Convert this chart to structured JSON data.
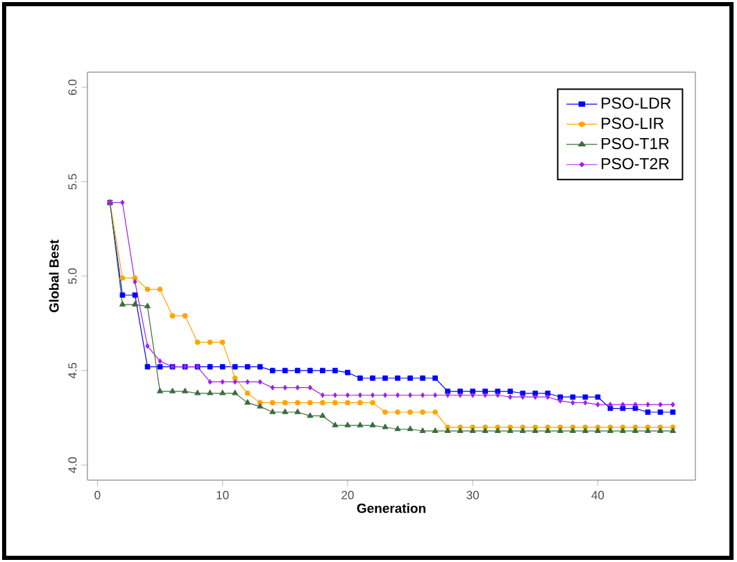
{
  "chart_data": {
    "type": "line",
    "xlabel": "Generation",
    "ylabel": "Global Best",
    "x": [
      1,
      2,
      3,
      4,
      5,
      6,
      7,
      8,
      9,
      10,
      11,
      12,
      13,
      14,
      15,
      16,
      17,
      18,
      19,
      20,
      21,
      22,
      23,
      24,
      25,
      26,
      27,
      28,
      29,
      30,
      31,
      32,
      33,
      34,
      35,
      36,
      37,
      38,
      39,
      40,
      41,
      42,
      43,
      44,
      45,
      46
    ],
    "series": [
      {
        "name": "PSO-LDR",
        "color": "#0000ff",
        "marker": "square",
        "values": [
          5.39,
          4.9,
          4.9,
          4.52,
          4.52,
          4.52,
          4.52,
          4.52,
          4.52,
          4.52,
          4.52,
          4.52,
          4.52,
          4.5,
          4.5,
          4.5,
          4.5,
          4.5,
          4.5,
          4.49,
          4.46,
          4.46,
          4.46,
          4.46,
          4.46,
          4.46,
          4.46,
          4.39,
          4.39,
          4.39,
          4.39,
          4.39,
          4.39,
          4.38,
          4.38,
          4.38,
          4.36,
          4.36,
          4.36,
          4.36,
          4.3,
          4.3,
          4.3,
          4.28,
          4.28,
          4.28
        ]
      },
      {
        "name": "PSO-LIR",
        "color": "#ffa500",
        "marker": "circle",
        "values": [
          5.39,
          4.99,
          4.99,
          4.93,
          4.93,
          4.79,
          4.79,
          4.65,
          4.65,
          4.65,
          4.46,
          4.38,
          4.33,
          4.33,
          4.33,
          4.33,
          4.33,
          4.33,
          4.33,
          4.33,
          4.33,
          4.33,
          4.28,
          4.28,
          4.28,
          4.28,
          4.28,
          4.2,
          4.2,
          4.2,
          4.2,
          4.2,
          4.2,
          4.2,
          4.2,
          4.2,
          4.2,
          4.2,
          4.2,
          4.2,
          4.2,
          4.2,
          4.2,
          4.2,
          4.2,
          4.2
        ]
      },
      {
        "name": "PSO-T1R",
        "color": "#3b6e3b",
        "marker": "triangle",
        "values": [
          5.39,
          4.85,
          4.85,
          4.84,
          4.39,
          4.39,
          4.39,
          4.38,
          4.38,
          4.38,
          4.38,
          4.33,
          4.31,
          4.28,
          4.28,
          4.28,
          4.26,
          4.26,
          4.21,
          4.21,
          4.21,
          4.21,
          4.2,
          4.19,
          4.19,
          4.18,
          4.18,
          4.18,
          4.18,
          4.18,
          4.18,
          4.18,
          4.18,
          4.18,
          4.18,
          4.18,
          4.18,
          4.18,
          4.18,
          4.18,
          4.18,
          4.18,
          4.18,
          4.18,
          4.18,
          4.18
        ]
      },
      {
        "name": "PSO-T2R",
        "color": "#a020f0",
        "marker": "diamond",
        "values": [
          5.39,
          5.39,
          4.97,
          4.63,
          4.55,
          4.52,
          4.52,
          4.52,
          4.44,
          4.44,
          4.44,
          4.44,
          4.44,
          4.41,
          4.41,
          4.41,
          4.41,
          4.37,
          4.37,
          4.37,
          4.37,
          4.37,
          4.37,
          4.37,
          4.37,
          4.37,
          4.37,
          4.37,
          4.37,
          4.37,
          4.37,
          4.37,
          4.36,
          4.36,
          4.36,
          4.36,
          4.34,
          4.33,
          4.33,
          4.32,
          4.32,
          4.32,
          4.32,
          4.32,
          4.32,
          4.32
        ]
      }
    ],
    "xlim": [
      -0.8,
      47.8
    ],
    "ylim": [
      3.92,
      6.08
    ],
    "xticks": [
      0,
      10,
      20,
      30,
      40
    ],
    "yticks": [
      {
        "value": 4,
        "label": "4.0"
      },
      4.5,
      {
        "value": 5,
        "label": "5.0"
      },
      5.5,
      {
        "value": 6,
        "label": "6.0"
      }
    ],
    "legend": "top right",
    "grid": false
  }
}
